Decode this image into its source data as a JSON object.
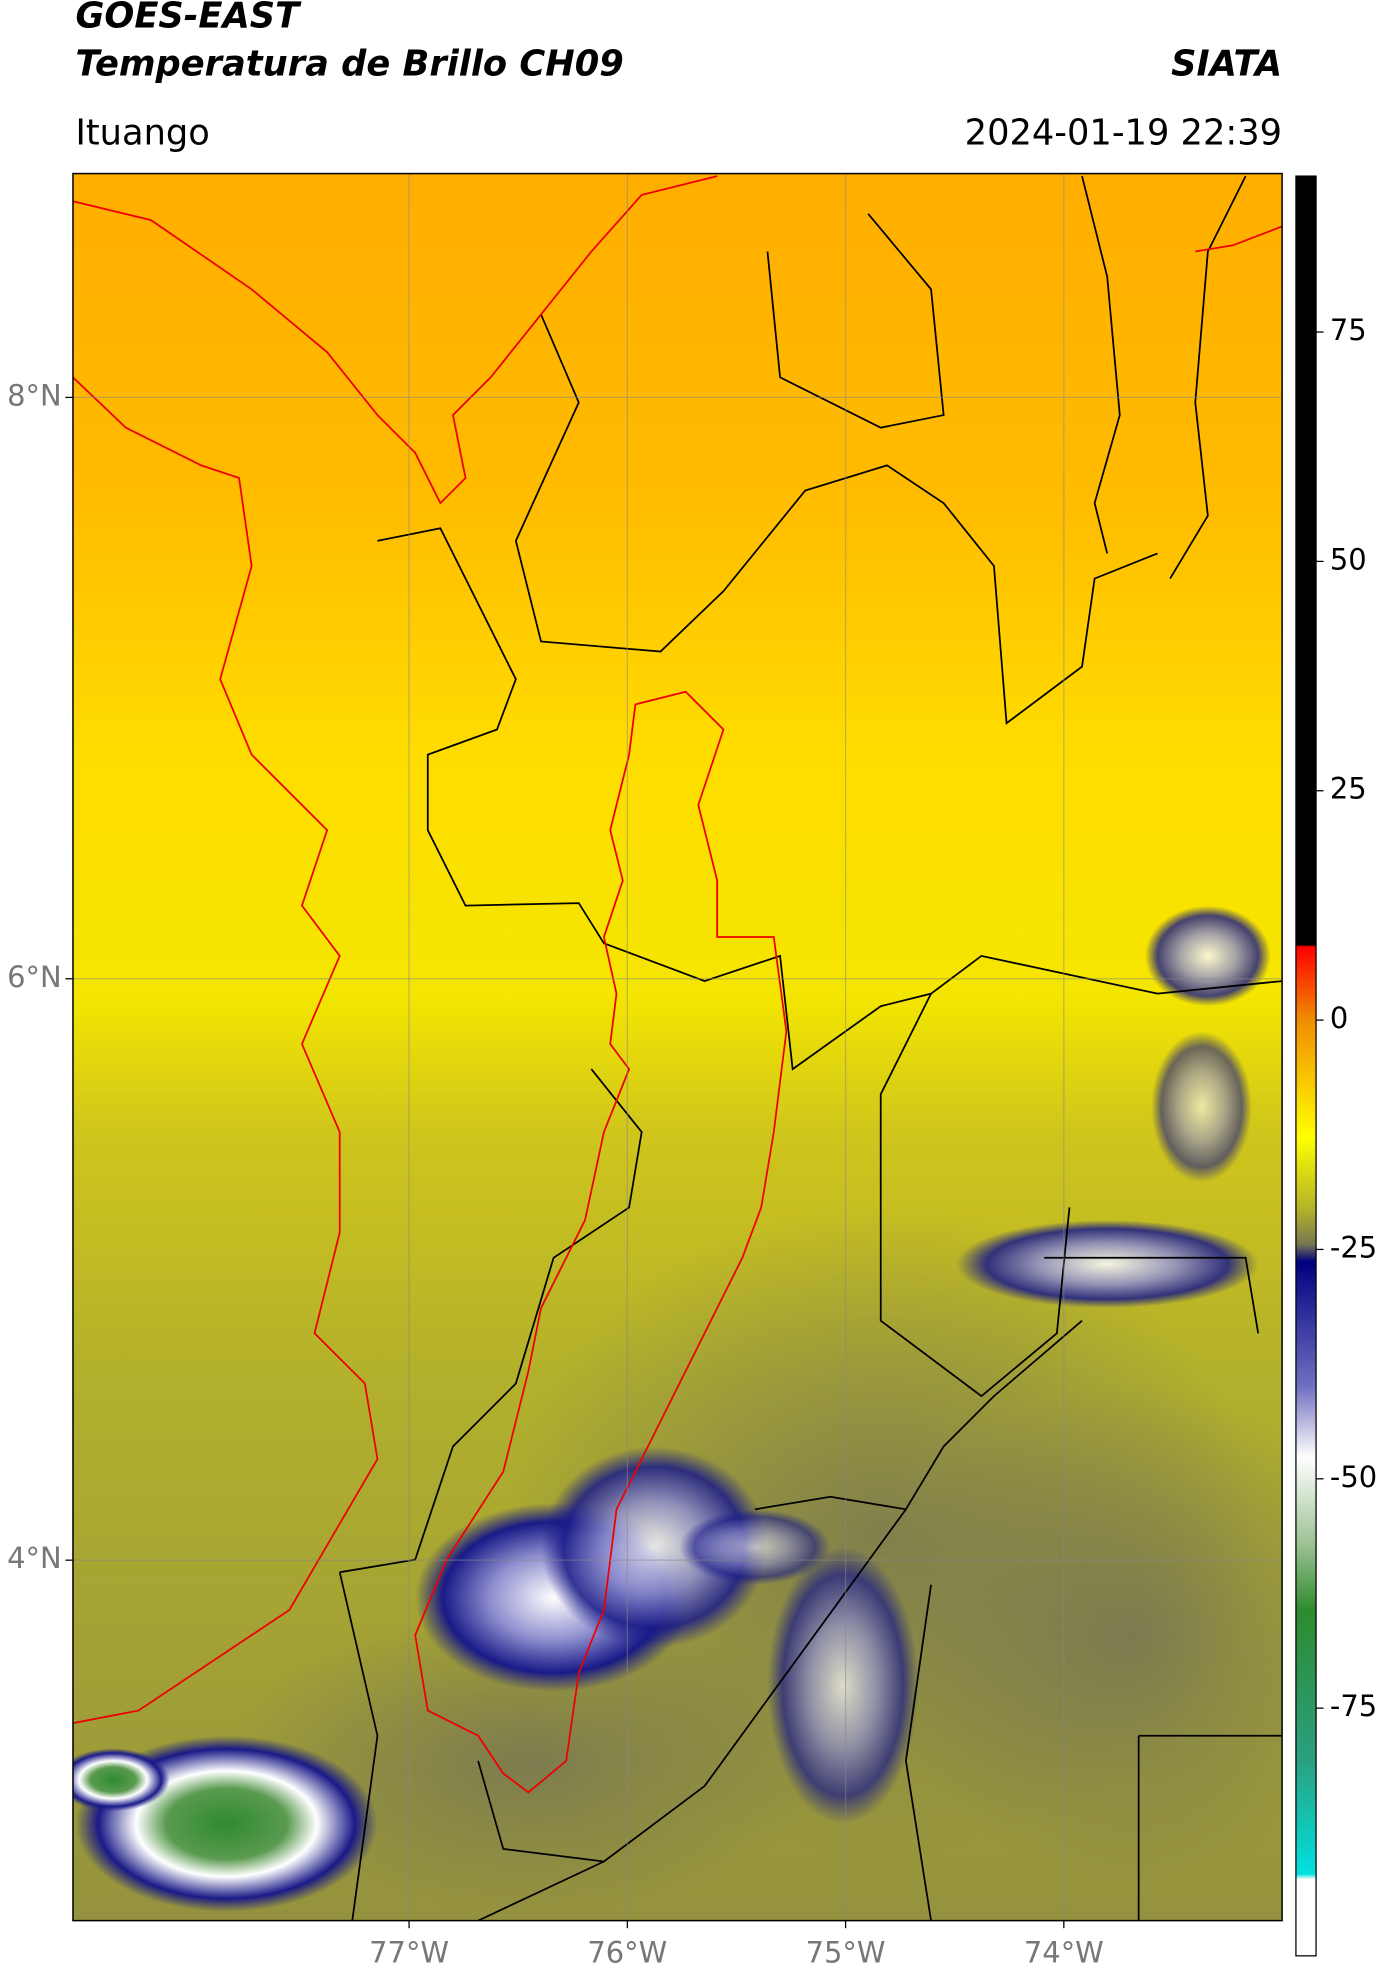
{
  "header": {
    "title": "GOES-EAST",
    "subtitle": "Temperatura de Brillo CH09",
    "source": "SIATA",
    "location": "Ituango",
    "timestamp": "2024-01-19 22:39"
  },
  "map": {
    "xlim": [
      -78.54,
      -73.0
    ],
    "ylim": [
      2.76,
      8.77
    ],
    "xticks": [
      {
        "value": -77,
        "label": "77°W"
      },
      {
        "value": -76,
        "label": "76°W"
      },
      {
        "value": -75,
        "label": "75°W"
      },
      {
        "value": -74,
        "label": "74°W"
      }
    ],
    "yticks": [
      {
        "value": 4,
        "label": "4°N"
      },
      {
        "value": 6,
        "label": "6°N"
      },
      {
        "value": 8,
        "label": "8°N"
      }
    ],
    "grid": true
  },
  "colorbar": {
    "lim": [
      -102,
      92
    ],
    "ticks": [
      -75,
      -50,
      -25,
      0,
      25,
      50,
      75
    ]
  }
}
